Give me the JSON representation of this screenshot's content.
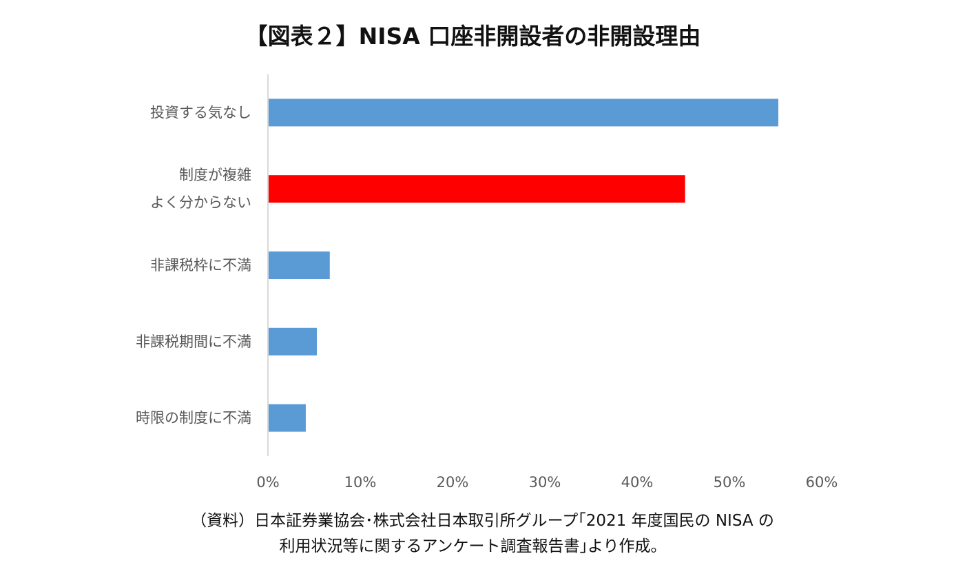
{
  "chart_data": {
    "type": "bar",
    "orientation": "horizontal",
    "title": "【図表２】NISA 口座非開設者の非開設理由",
    "categories": [
      [
        "投資する気なし"
      ],
      [
        "制度が複雑",
        "よく分からない"
      ],
      [
        "非課税枠に不満"
      ],
      [
        "非課税期間に不満"
      ],
      [
        "時限の制度に不満"
      ]
    ],
    "values": [
      55.3,
      45.2,
      6.7,
      5.3,
      4.1
    ],
    "bar_colors": [
      "#5B9BD5",
      "#FF0000",
      "#5B9BD5",
      "#5B9BD5",
      "#5B9BD5"
    ],
    "xlim": [
      0,
      60
    ],
    "xticks": [
      0,
      10,
      20,
      30,
      40,
      50,
      60
    ],
    "xtick_labels": [
      "0%",
      "10%",
      "20%",
      "30%",
      "40%",
      "50%",
      "60%"
    ],
    "grid": false,
    "legend": "none"
  },
  "source": {
    "line1": "（資料）日本証券業協会･株式会社日本取引所グループ｢2021 年度国民の NISA の",
    "line2": "利用状況等に関するアンケート調査報告書｣より作成。"
  }
}
